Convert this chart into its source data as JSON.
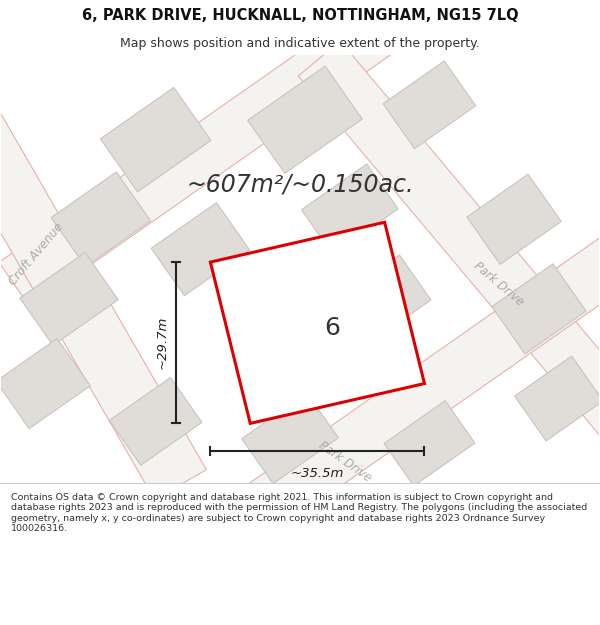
{
  "title_line1": "6, PARK DRIVE, HUCKNALL, NOTTINGHAM, NG15 7LQ",
  "title_line2": "Map shows position and indicative extent of the property.",
  "area_text": "~607m²/~0.150ac.",
  "property_label": "6",
  "width_label": "~35.5m",
  "height_label": "~29.7m",
  "map_bg": "#f5f3f0",
  "road_fill": "#f5f3f0",
  "road_line_color": "#e8b0a8",
  "building_fill": "#e0dcd8",
  "building_edge": "#c8c4be",
  "property_fill": "#ffffff",
  "property_edge": "#dd0000",
  "dim_color": "#222222",
  "label_color": "#333333",
  "road_label_color": "#aaaaaa",
  "footer_bg": "#ffffff",
  "copyright_text": "Contains OS data © Crown copyright and database right 2021. This information is subject to Crown copyright and database rights 2023 and is reproduced with the permission of HM Land Registry. The polygons (including the associated geometry, namely x, y co-ordinates) are subject to Crown copyright and database rights 2023 Ordnance Survey 100026316.",
  "title_fontsize": 10.5,
  "subtitle_fontsize": 9,
  "area_fontsize": 17,
  "label_fontsize": 18,
  "dim_fontsize": 9.5,
  "road_label_fontsize": 8.5,
  "footer_fontsize": 6.8
}
